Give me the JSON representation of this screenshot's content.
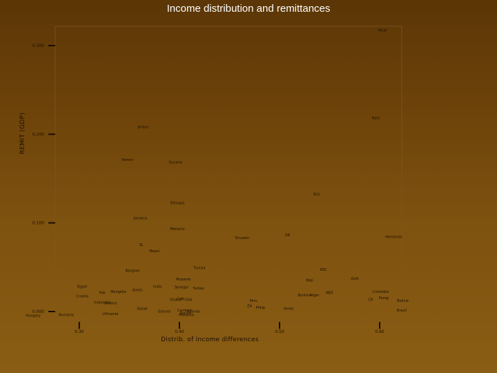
{
  "chart_data": {
    "type": "scatter",
    "title": "Income distribution and remittances",
    "xlabel": "Distrib. of income differences",
    "ylabel": "REMIT (GDP)",
    "xlim": [
      0.276,
      0.622
    ],
    "ylim": [
      0.0,
      0.3
    ],
    "xticks": [
      0.3,
      0.4,
      0.5,
      0.6
    ],
    "xtick_labels": [
      "0.30",
      "0.40",
      "0.50",
      "0.60"
    ],
    "yticks": [
      0.0,
      0.1,
      0.2,
      0.3
    ],
    "ytick_labels": [
      "0.000",
      "0.100",
      "0.200",
      "0.300"
    ],
    "grid": false,
    "legend": "none",
    "points": [
      {
        "label": "Nicar",
        "x": 0.603,
        "y": 0.316
      },
      {
        "label": "Haiti",
        "x": 0.596,
        "y": 0.217
      },
      {
        "label": "Jordan",
        "x": 0.364,
        "y": 0.207
      },
      {
        "label": "Yemen",
        "x": 0.348,
        "y": 0.17
      },
      {
        "label": "Guyana",
        "x": 0.396,
        "y": 0.167
      },
      {
        "label": "ELS",
        "x": 0.537,
        "y": 0.131
      },
      {
        "label": "Ethiopia",
        "x": 0.398,
        "y": 0.121
      },
      {
        "label": "Jamaica",
        "x": 0.361,
        "y": 0.104
      },
      {
        "label": "Morocco",
        "x": 0.398,
        "y": 0.092
      },
      {
        "label": "DR",
        "x": 0.508,
        "y": 0.085
      },
      {
        "label": "Ecuador",
        "x": 0.463,
        "y": 0.082
      },
      {
        "label": "Honduras",
        "x": 0.614,
        "y": 0.083
      },
      {
        "label": "SL",
        "x": 0.362,
        "y": 0.074
      },
      {
        "label": "Nepal",
        "x": 0.375,
        "y": 0.067
      },
      {
        "label": "Tunisia",
        "x": 0.42,
        "y": 0.048
      },
      {
        "label": "Banglad",
        "x": 0.353,
        "y": 0.045
      },
      {
        "label": "RSC",
        "x": 0.544,
        "y": 0.046
      },
      {
        "label": "Mozamb",
        "x": 0.404,
        "y": 0.035
      },
      {
        "label": "GUA",
        "x": 0.575,
        "y": 0.036
      },
      {
        "label": "Mali",
        "x": 0.53,
        "y": 0.034
      },
      {
        "label": "India",
        "x": 0.378,
        "y": 0.027
      },
      {
        "label": "Egypt",
        "x": 0.303,
        "y": 0.027
      },
      {
        "label": "Senegal",
        "x": 0.402,
        "y": 0.026
      },
      {
        "label": "Turkey",
        "x": 0.419,
        "y": 0.025
      },
      {
        "label": "Azerb",
        "x": 0.358,
        "y": 0.023
      },
      {
        "label": "Pak",
        "x": 0.323,
        "y": 0.02
      },
      {
        "label": "Mongolia",
        "x": 0.339,
        "y": 0.021
      },
      {
        "label": "Colombia",
        "x": 0.601,
        "y": 0.021
      },
      {
        "label": "MEX",
        "x": 0.55,
        "y": 0.02
      },
      {
        "label": "Burkina",
        "x": 0.525,
        "y": 0.017
      },
      {
        "label": "Niger",
        "x": 0.535,
        "y": 0.017
      },
      {
        "label": "Croatia",
        "x": 0.303,
        "y": 0.016
      },
      {
        "label": "Parag",
        "x": 0.604,
        "y": 0.014
      },
      {
        "label": "CR",
        "x": 0.591,
        "y": 0.012
      },
      {
        "label": "Bolivia",
        "x": 0.623,
        "y": 0.011
      },
      {
        "label": "CHN",
        "x": 0.401,
        "y": 0.013
      },
      {
        "label": "Ghana",
        "x": 0.396,
        "y": 0.012
      },
      {
        "label": "USA",
        "x": 0.409,
        "y": 0.012
      },
      {
        "label": "Peru",
        "x": 0.474,
        "y": 0.011
      },
      {
        "label": "Indonesia",
        "x": 0.323,
        "y": 0.009
      },
      {
        "label": "Ukraine",
        "x": 0.331,
        "y": 0.008
      },
      {
        "label": "ZA",
        "x": 0.47,
        "y": 0.005
      },
      {
        "label": "Philip",
        "x": 0.481,
        "y": 0.003
      },
      {
        "label": "Kazak",
        "x": 0.363,
        "y": 0.002
      },
      {
        "label": "Venez",
        "x": 0.509,
        "y": 0.002
      },
      {
        "label": "Cambod",
        "x": 0.405,
        "y": 0.0
      },
      {
        "label": "Uganda",
        "x": 0.414,
        "y": -0.001
      },
      {
        "label": "Estonia",
        "x": 0.385,
        "y": -0.001
      },
      {
        "label": "Brazil",
        "x": 0.622,
        "y": 0.0
      },
      {
        "label": "Kenya",
        "x": 0.406,
        "y": -0.003
      },
      {
        "label": "Malaysia",
        "x": 0.407,
        "y": -0.005
      },
      {
        "label": "Lithuania",
        "x": 0.331,
        "y": -0.004
      },
      {
        "label": "Romania",
        "x": 0.287,
        "y": -0.005
      },
      {
        "label": "Hungary",
        "x": 0.254,
        "y": -0.006
      }
    ]
  }
}
